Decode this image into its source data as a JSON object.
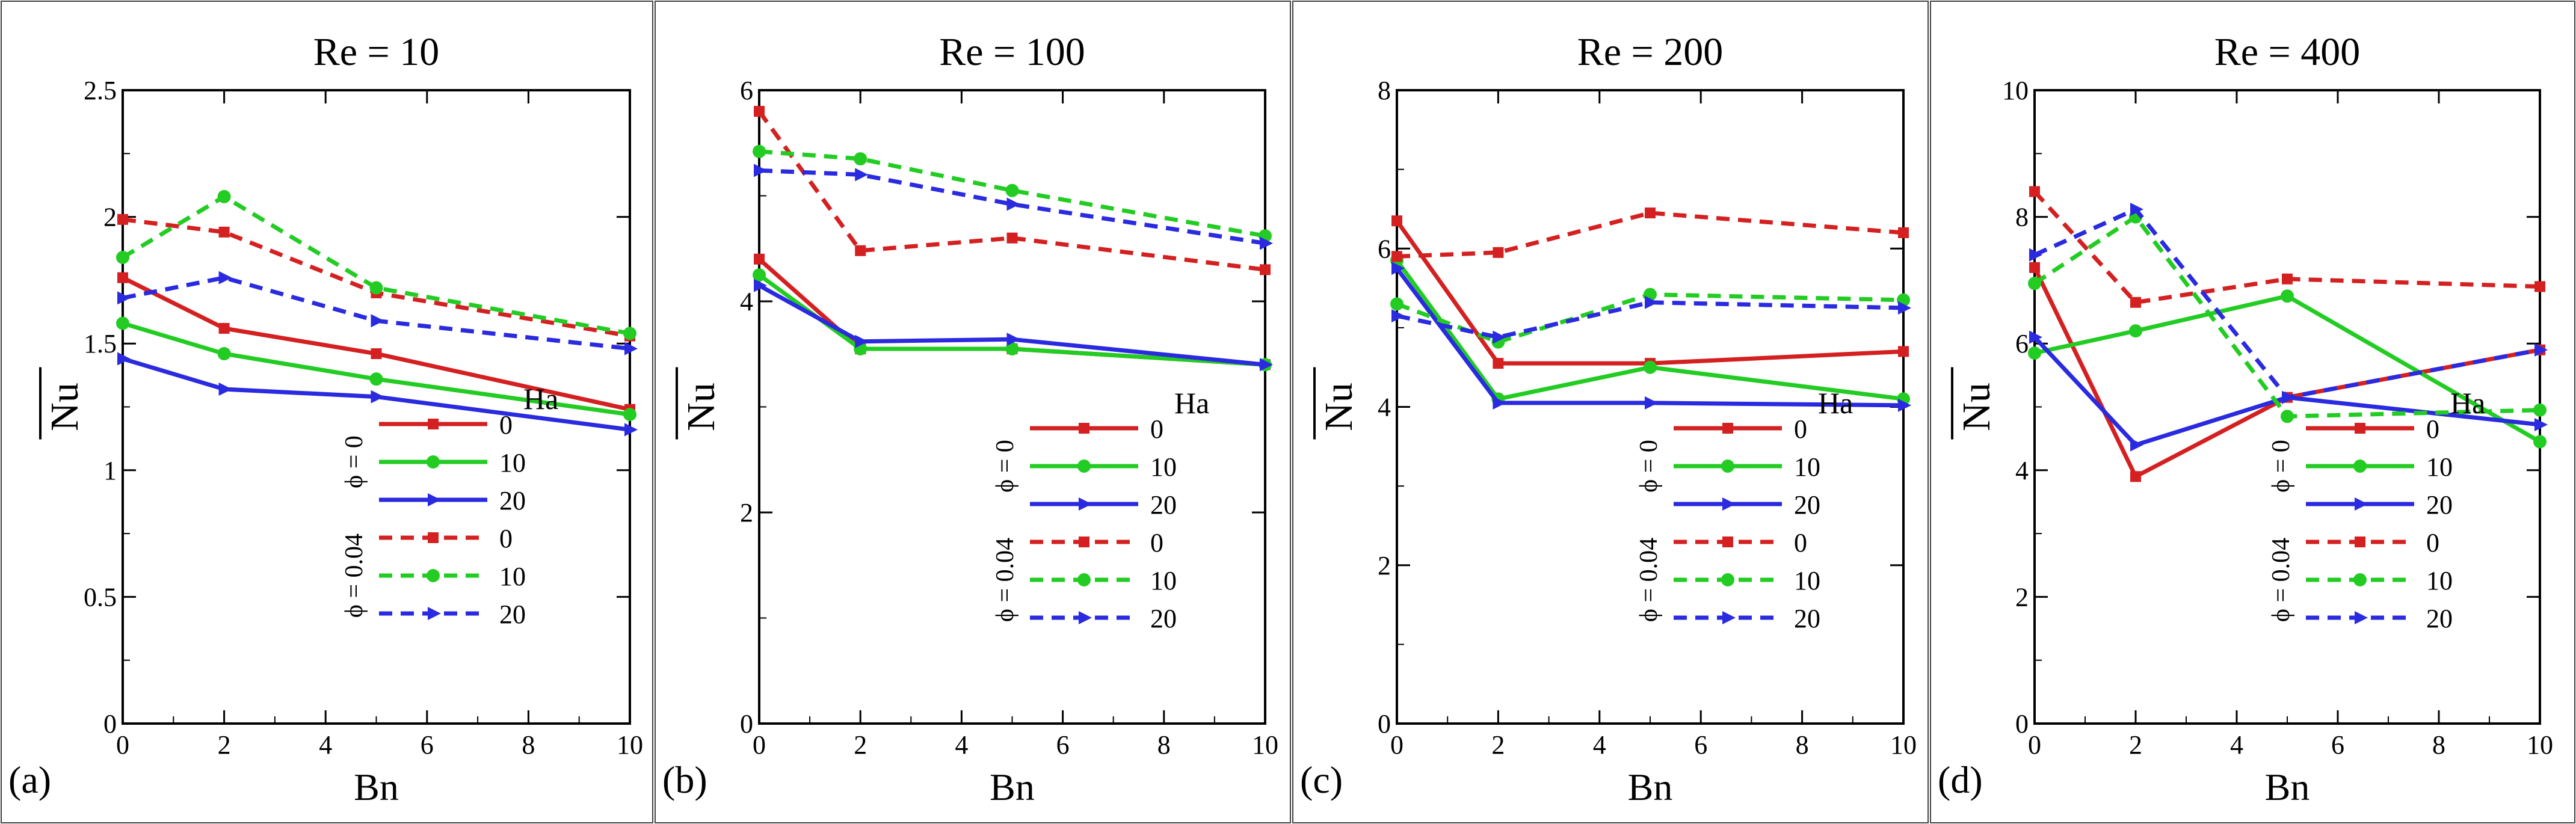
{
  "legend_labels": {
    "header": "Ha",
    "phi0": "ϕ = 0",
    "phi004": "ϕ = 0.04",
    "items": [
      "0",
      "10",
      "20",
      "0",
      "10",
      "20"
    ]
  },
  "colors": {
    "red": "#d42020",
    "green": "#22cc22",
    "blue": "#2a2ae0"
  },
  "chart_data": [
    {
      "type": "line",
      "panel_label": "(a)",
      "title": "Re = 10",
      "xlabel": "Bn",
      "ylabel": "Nu",
      "xlim": [
        0,
        10
      ],
      "ylim": [
        0,
        2.5
      ],
      "xticks": [
        "0",
        "2",
        "4",
        "6",
        "8",
        "10"
      ],
      "yticks": [
        "0",
        "0.5",
        "1",
        "1.5",
        "2",
        "2.5"
      ],
      "x": [
        0,
        2,
        5,
        10
      ],
      "series": [
        {
          "name": "ϕ = 0, Ha = 0",
          "values": [
            1.76,
            1.56,
            1.46,
            1.24
          ]
        },
        {
          "name": "ϕ = 0, Ha = 10",
          "values": [
            1.58,
            1.46,
            1.36,
            1.22
          ]
        },
        {
          "name": "ϕ = 0, Ha = 20",
          "values": [
            1.44,
            1.32,
            1.29,
            1.16
          ]
        },
        {
          "name": "ϕ = 0.04, Ha = 0",
          "values": [
            1.99,
            1.94,
            1.7,
            1.53
          ]
        },
        {
          "name": "ϕ = 0.04, Ha = 10",
          "values": [
            1.84,
            2.08,
            1.72,
            1.54
          ]
        },
        {
          "name": "ϕ = 0.04, Ha = 20",
          "values": [
            1.68,
            1.76,
            1.59,
            1.48
          ]
        }
      ]
    },
    {
      "type": "line",
      "panel_label": "(b)",
      "title": "Re = 100",
      "xlabel": "Bn",
      "ylabel": "Nu",
      "xlim": [
        0,
        10
      ],
      "ylim": [
        0,
        6
      ],
      "xticks": [
        "0",
        "2",
        "4",
        "6",
        "8",
        "10"
      ],
      "yticks": [
        "0",
        "2",
        "4",
        "6"
      ],
      "x": [
        0,
        2,
        5,
        10
      ],
      "series": [
        {
          "name": "ϕ = 0, Ha = 0",
          "values": [
            4.4,
            3.55,
            3.55,
            3.4
          ]
        },
        {
          "name": "ϕ = 0, Ha = 10",
          "values": [
            4.25,
            3.55,
            3.55,
            3.4
          ]
        },
        {
          "name": "ϕ = 0, Ha = 20",
          "values": [
            4.15,
            3.62,
            3.64,
            3.4
          ]
        },
        {
          "name": "ϕ = 0.04, Ha = 0",
          "values": [
            5.8,
            4.48,
            4.6,
            4.3
          ]
        },
        {
          "name": "ϕ = 0.04, Ha = 10",
          "values": [
            5.42,
            5.35,
            5.05,
            4.62
          ]
        },
        {
          "name": "ϕ = 0.04, Ha = 20",
          "values": [
            5.24,
            5.2,
            4.92,
            4.55
          ]
        }
      ]
    },
    {
      "type": "line",
      "panel_label": "(c)",
      "title": "Re = 200",
      "xlabel": "Bn",
      "ylabel": "Nu",
      "xlim": [
        0,
        10
      ],
      "ylim": [
        0,
        8
      ],
      "xticks": [
        "0",
        "2",
        "4",
        "6",
        "8",
        "10"
      ],
      "yticks": [
        "0",
        "2",
        "4",
        "6",
        "8"
      ],
      "x": [
        0,
        2,
        5,
        10
      ],
      "series": [
        {
          "name": "ϕ = 0, Ha = 0",
          "values": [
            6.35,
            4.55,
            4.55,
            4.7
          ]
        },
        {
          "name": "ϕ = 0, Ha = 10",
          "values": [
            5.85,
            4.1,
            4.5,
            4.1
          ]
        },
        {
          "name": "ϕ = 0, Ha = 20",
          "values": [
            5.75,
            4.05,
            4.05,
            4.02
          ]
        },
        {
          "name": "ϕ = 0.04, Ha = 0",
          "values": [
            5.9,
            5.95,
            6.45,
            6.2
          ]
        },
        {
          "name": "ϕ = 0.04, Ha = 10",
          "values": [
            5.3,
            4.82,
            5.42,
            5.35
          ]
        },
        {
          "name": "ϕ = 0.04, Ha = 20",
          "values": [
            5.15,
            4.88,
            5.32,
            5.25
          ]
        }
      ]
    },
    {
      "type": "line",
      "panel_label": "(d)",
      "title": "Re = 400",
      "xlabel": "Bn",
      "ylabel": "Nu",
      "xlim": [
        0,
        10
      ],
      "ylim": [
        0,
        10
      ],
      "xticks": [
        "0",
        "2",
        "4",
        "6",
        "8",
        "10"
      ],
      "yticks": [
        "0",
        "2",
        "4",
        "6",
        "8",
        "10"
      ],
      "x": [
        0,
        2,
        5,
        10
      ],
      "series": [
        {
          "name": "ϕ = 0, Ha = 0",
          "values": [
            7.2,
            3.9,
            5.15,
            5.9
          ]
        },
        {
          "name": "ϕ = 0, Ha = 10",
          "values": [
            5.85,
            6.2,
            6.75,
            4.45
          ]
        },
        {
          "name": "ϕ = 0, Ha = 20",
          "values": [
            6.1,
            4.4,
            5.15,
            4.72
          ]
        },
        {
          "name": "ϕ = 0.04, Ha = 0",
          "values": [
            8.4,
            6.65,
            7.02,
            6.9
          ]
        },
        {
          "name": "ϕ = 0.04, Ha = 10",
          "values": [
            6.95,
            8.0,
            4.85,
            4.95
          ]
        },
        {
          "name": "ϕ = 0.04, Ha = 20",
          "values": [
            7.4,
            8.12,
            5.15,
            5.9
          ]
        }
      ]
    }
  ]
}
